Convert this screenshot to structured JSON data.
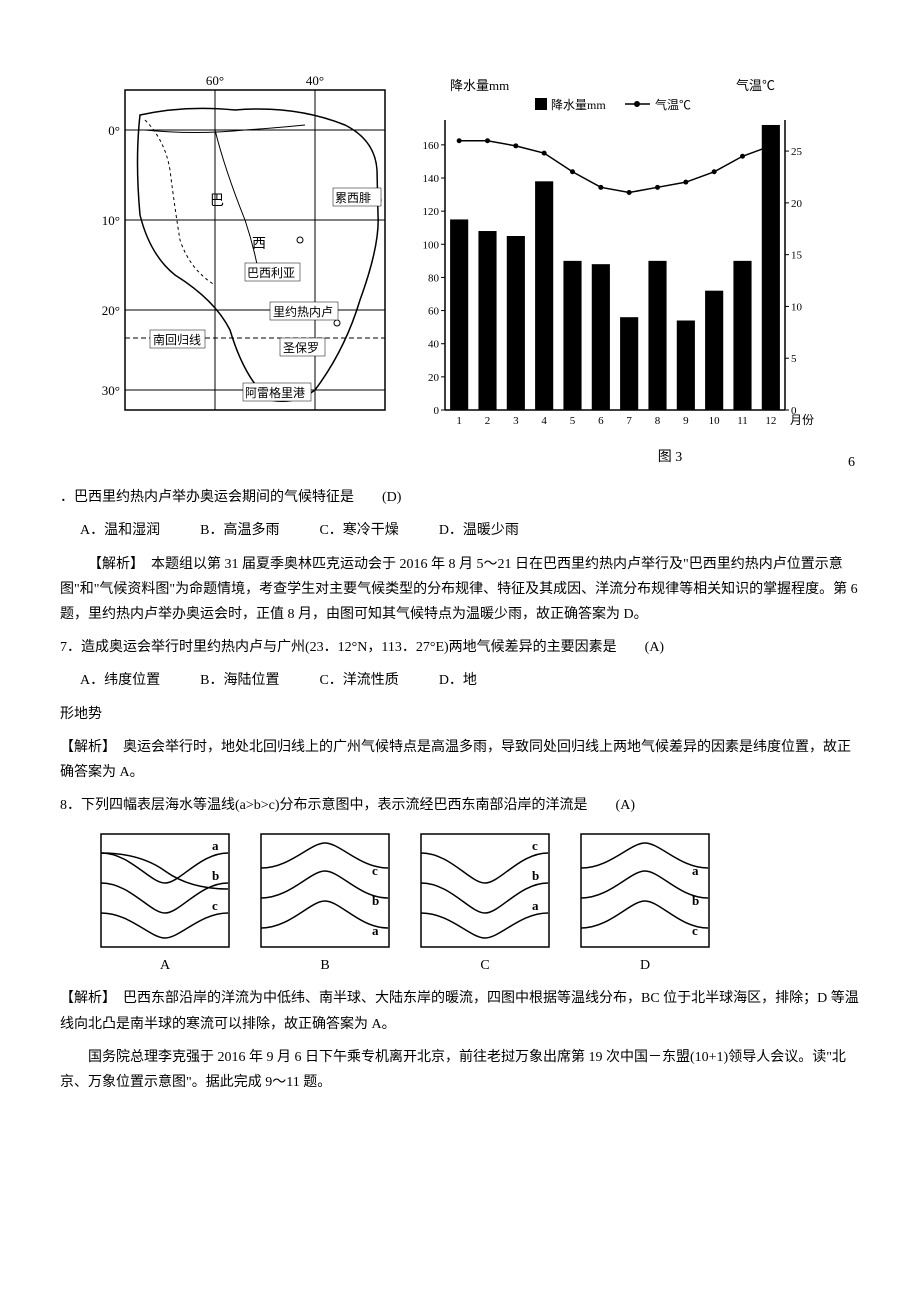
{
  "map": {
    "longitudes": [
      "60°",
      "40°"
    ],
    "latitudes": [
      "0°",
      "10°",
      "20°",
      "30°"
    ],
    "labels": {
      "country": "巴",
      "capital_region": "西",
      "brasilia": "巴西利亚",
      "recife": "累西腓",
      "rio": "里约热内卢",
      "tropic": "南回归线",
      "saopaulo": "圣保罗",
      "portoalegre": "阿雷格里港"
    },
    "border_color": "#000000",
    "line_color": "#000000"
  },
  "chart": {
    "type": "combo-bar-line",
    "y_left_label": "降水量mm",
    "y_right_label": "气温℃",
    "x_label": "月份",
    "legend_bar": "降水量mm",
    "legend_line": "气温℃",
    "months": [
      1,
      2,
      3,
      4,
      5,
      6,
      7,
      8,
      9,
      10,
      11,
      12
    ],
    "precip": [
      115,
      108,
      105,
      138,
      90,
      88,
      56,
      90,
      54,
      72,
      90,
      172
    ],
    "temp": [
      26.0,
      26.0,
      25.5,
      24.8,
      23.0,
      21.5,
      21.0,
      21.5,
      22.0,
      23.0,
      24.5,
      25.5
    ],
    "y_left_ticks": [
      0,
      20,
      40,
      60,
      80,
      100,
      120,
      140,
      160
    ],
    "y_left_max": 175,
    "y_right_ticks": [
      0,
      5,
      10,
      15,
      20,
      25
    ],
    "y_right_max": 28,
    "bar_color": "#000000",
    "line_color": "#000000",
    "bg_color": "#ffffff",
    "axis_color": "#000000",
    "font_size": 12
  },
  "figure_label": "图 3",
  "q6": {
    "number_marker": "6",
    "text": "．巴西里约热内卢举办奥运会期间的气候特征是　　(D)",
    "options": {
      "A": "A．温和湿润",
      "B": "B．高温多雨",
      "C": "C．寒冷干燥",
      "D": "D．温暖少雨"
    },
    "analysis_label": "【解析】",
    "analysis": "本题组以第 31 届夏季奥林匹克运动会于 2016 年 8 月 5～21 日在巴西里约热内卢举行及\"巴西里约热内卢位置示意图\"和\"气候资料图\"为命题情境，考查学生对主要气候类型的分布规律、特征及其成因、洋流分布规律等相关知识的掌握程度。第 6 题，里约热内卢举办奥运会时，正值 8 月，由图可知其气候特点为温暖少雨，故正确答案为 D。"
  },
  "q7": {
    "text": "7．造成奥运会举行时里约热内卢与广州(23．12°N，113．27°E)两地气候差异的主要因素是　　(A)",
    "options": {
      "A": "A．纬度位置",
      "B": "B．海陆位置",
      "C": "C．洋流性质",
      "D": "D．地"
    },
    "option_d_cont": "形地势",
    "analysis_label": "【解析】",
    "analysis": "奥运会举行时，地处北回归线上的广州气候特点是高温多雨，导致同处回归线上两地气候差异的因素是纬度位置，故正确答案为 A。"
  },
  "q8": {
    "text": "8．下列四幅表层海水等温线(a>b>c)分布示意图中，表示流经巴西东南部沿岸的洋流是　　(A)",
    "isotherms": [
      {
        "label": "A",
        "lines": [
          "a",
          "b",
          "c"
        ],
        "bulge": "down"
      },
      {
        "label": "B",
        "lines": [
          "c",
          "b",
          "a"
        ],
        "bulge": "up"
      },
      {
        "label": "C",
        "lines": [
          "c",
          "b",
          "a"
        ],
        "bulge": "down"
      },
      {
        "label": "D",
        "lines": [
          "a",
          "b",
          "c"
        ],
        "bulge": "up"
      }
    ],
    "box_border": "#000000",
    "line_color": "#000000",
    "analysis_label": "【解析】",
    "analysis": "巴西东部沿岸的洋流为中低纬、南半球、大陆东岸的暖流，四图中根据等温线分布，BC 位于北半球海区，排除；D 等温线向北凸是南半球的寒流可以排除，故正确答案为 A。"
  },
  "context": {
    "para": "国务院总理李克强于 2016 年 9 月 6 日下午乘专机离开北京，前往老挝万象出席第 19 次中国－东盟(10+1)领导人会议。读\"北京、万象位置示意图\"。据此完成 9～11 题。"
  }
}
